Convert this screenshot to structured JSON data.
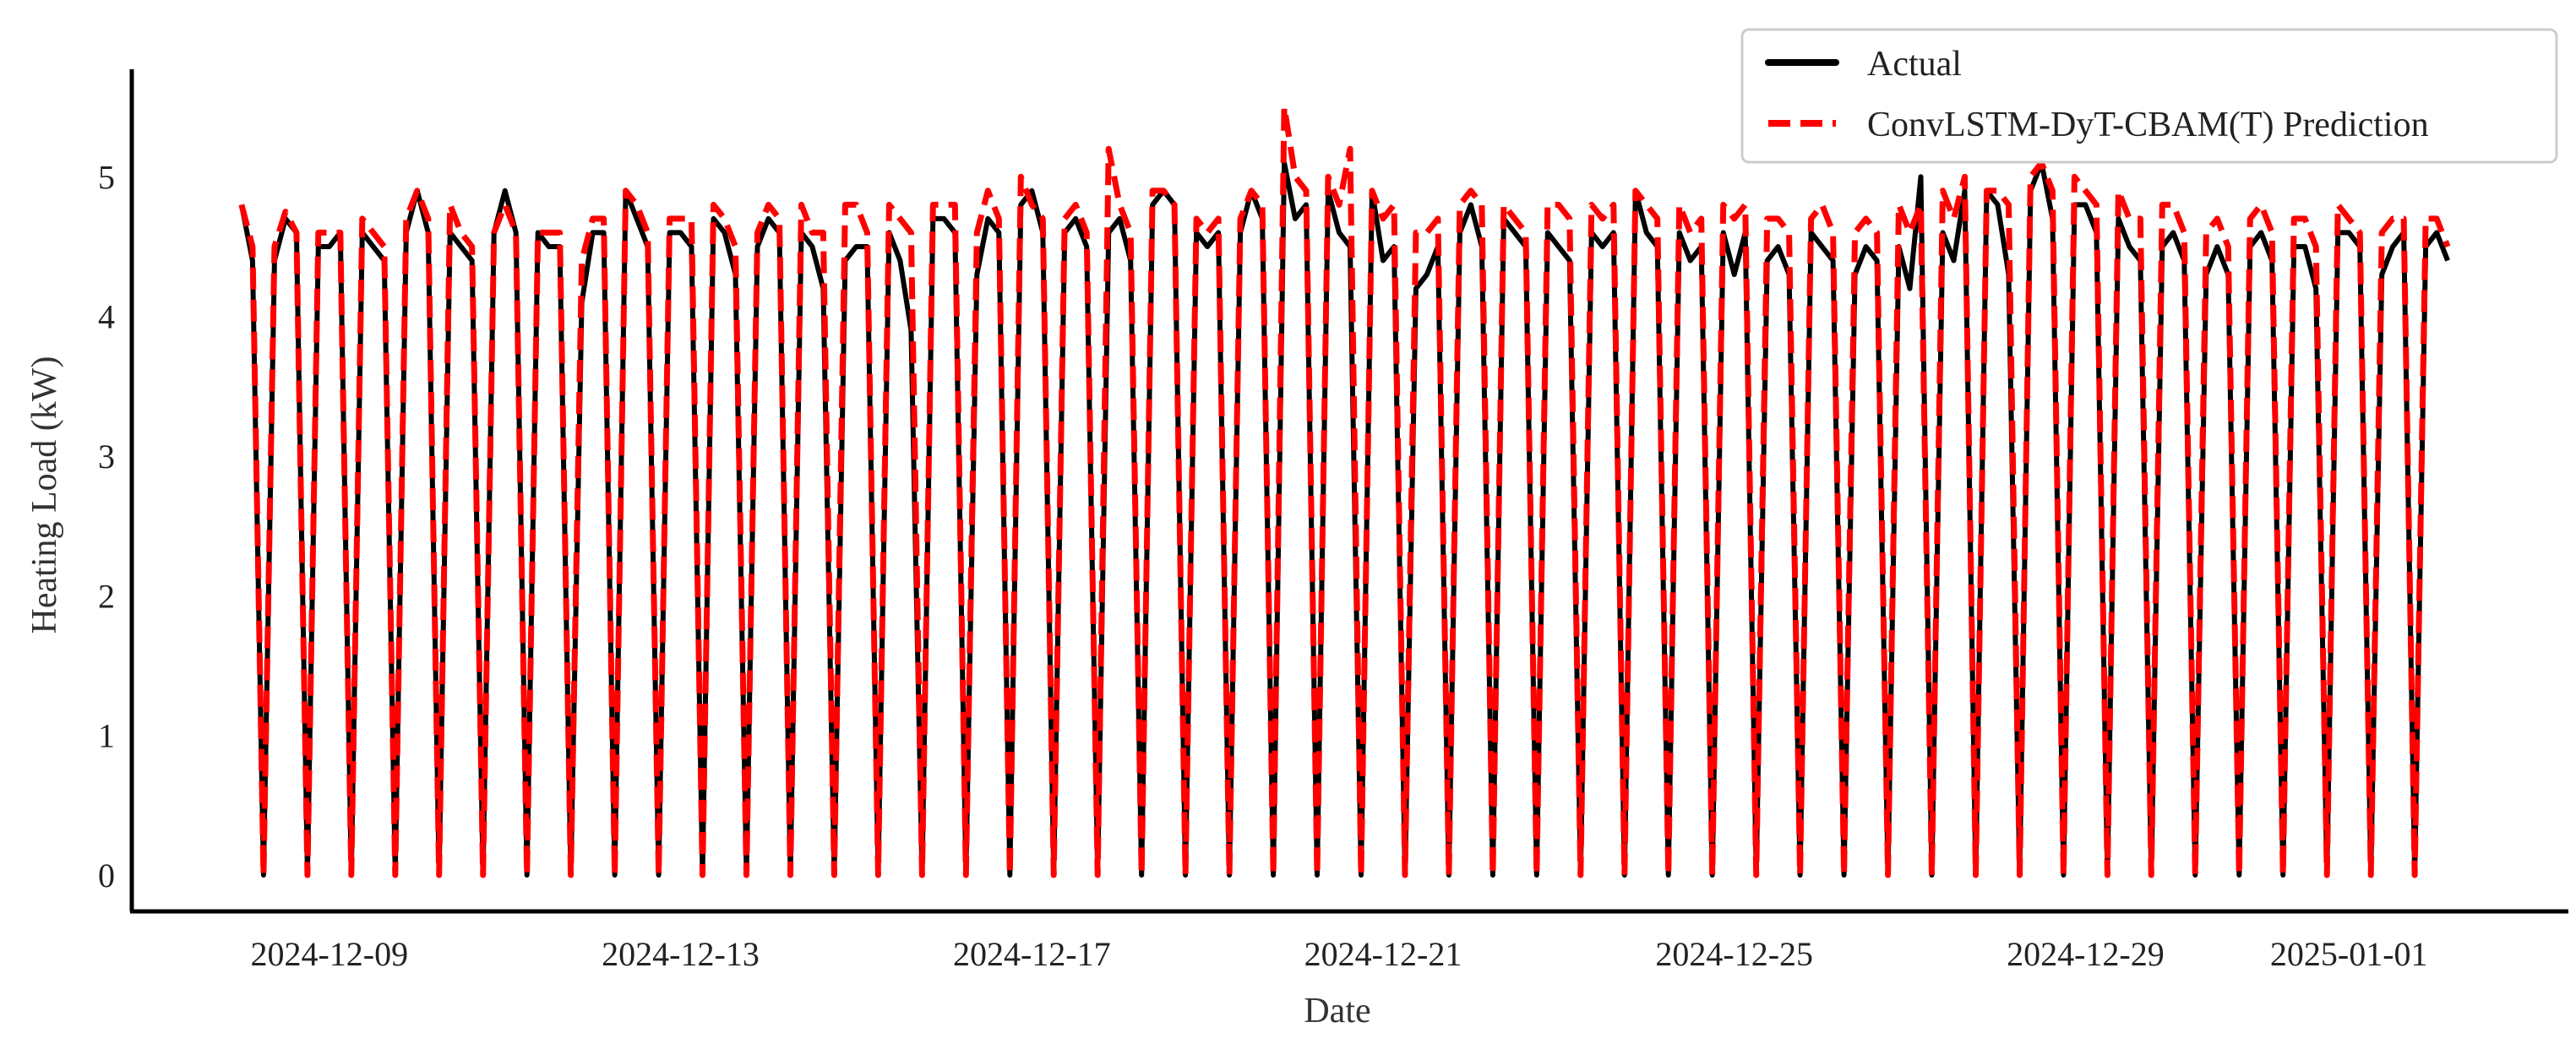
{
  "chart_data": {
    "type": "line",
    "title": "",
    "xlabel": "Date",
    "ylabel": "Heating Load (kW)",
    "xlim": [
      "2024-12-06 18:00",
      "2025-01-03 12:00"
    ],
    "ylim": [
      -0.26,
      5.77
    ],
    "grid": false,
    "legend_placement": "top-right",
    "x_tick_labels": [
      "2024-12-09",
      "2024-12-13",
      "2024-12-17",
      "2024-12-21",
      "2024-12-25",
      "2024-12-29",
      "2025-01-01"
    ],
    "y_ticks": [
      0,
      1,
      2,
      3,
      4,
      5
    ],
    "x": [
      "2024-12-08 00:00",
      "2024-12-08 03:00",
      "2024-12-08 06:00",
      "2024-12-08 09:00",
      "2024-12-08 12:00",
      "2024-12-08 15:00",
      "2024-12-08 18:00",
      "2024-12-08 21:00",
      "2024-12-09 00:00",
      "2024-12-09 03:00",
      "2024-12-09 06:00",
      "2024-12-09 09:00",
      "2024-12-09 12:00",
      "2024-12-09 15:00",
      "2024-12-09 18:00",
      "2024-12-09 21:00",
      "2024-12-10 00:00",
      "2024-12-10 03:00",
      "2024-12-10 06:00",
      "2024-12-10 09:00",
      "2024-12-10 12:00",
      "2024-12-10 15:00",
      "2024-12-10 18:00",
      "2024-12-10 21:00",
      "2024-12-11 00:00",
      "2024-12-11 03:00",
      "2024-12-11 06:00",
      "2024-12-11 09:00",
      "2024-12-11 12:00",
      "2024-12-11 15:00",
      "2024-12-11 18:00",
      "2024-12-11 21:00",
      "2024-12-12 00:00",
      "2024-12-12 03:00",
      "2024-12-12 06:00",
      "2024-12-12 09:00",
      "2024-12-12 12:00",
      "2024-12-12 15:00",
      "2024-12-12 18:00",
      "2024-12-12 21:00",
      "2024-12-13 00:00",
      "2024-12-13 03:00",
      "2024-12-13 06:00",
      "2024-12-13 09:00",
      "2024-12-13 12:00",
      "2024-12-13 15:00",
      "2024-12-13 18:00",
      "2024-12-13 21:00",
      "2024-12-14 00:00",
      "2024-12-14 03:00",
      "2024-12-14 06:00",
      "2024-12-14 09:00",
      "2024-12-14 12:00",
      "2024-12-14 15:00",
      "2024-12-14 18:00",
      "2024-12-14 21:00",
      "2024-12-15 00:00",
      "2024-12-15 03:00",
      "2024-12-15 06:00",
      "2024-12-15 09:00",
      "2024-12-15 12:00",
      "2024-12-15 15:00",
      "2024-12-15 18:00",
      "2024-12-15 21:00",
      "2024-12-16 00:00",
      "2024-12-16 03:00",
      "2024-12-16 06:00",
      "2024-12-16 09:00",
      "2024-12-16 12:00",
      "2024-12-16 15:00",
      "2024-12-16 18:00",
      "2024-12-16 21:00",
      "2024-12-17 00:00",
      "2024-12-17 03:00",
      "2024-12-17 06:00",
      "2024-12-17 09:00",
      "2024-12-17 12:00",
      "2024-12-17 15:00",
      "2024-12-17 18:00",
      "2024-12-17 21:00",
      "2024-12-18 00:00",
      "2024-12-18 03:00",
      "2024-12-18 06:00",
      "2024-12-18 09:00",
      "2024-12-18 12:00",
      "2024-12-18 15:00",
      "2024-12-18 18:00",
      "2024-12-18 21:00",
      "2024-12-19 00:00",
      "2024-12-19 03:00",
      "2024-12-19 06:00",
      "2024-12-19 09:00",
      "2024-12-19 12:00",
      "2024-12-19 15:00",
      "2024-12-19 18:00",
      "2024-12-19 21:00",
      "2024-12-20 00:00",
      "2024-12-20 03:00",
      "2024-12-20 06:00",
      "2024-12-20 09:00",
      "2024-12-20 12:00",
      "2024-12-20 15:00",
      "2024-12-20 18:00",
      "2024-12-20 21:00",
      "2024-12-21 00:00",
      "2024-12-21 03:00",
      "2024-12-21 06:00",
      "2024-12-21 09:00",
      "2024-12-21 12:00",
      "2024-12-21 15:00",
      "2024-12-21 18:00",
      "2024-12-21 21:00",
      "2024-12-22 00:00",
      "2024-12-22 03:00",
      "2024-12-22 06:00",
      "2024-12-22 09:00",
      "2024-12-22 12:00",
      "2024-12-22 15:00",
      "2024-12-22 18:00",
      "2024-12-22 21:00",
      "2024-12-23 00:00",
      "2024-12-23 03:00",
      "2024-12-23 06:00",
      "2024-12-23 09:00",
      "2024-12-23 12:00",
      "2024-12-23 15:00",
      "2024-12-23 18:00",
      "2024-12-23 21:00",
      "2024-12-24 00:00",
      "2024-12-24 03:00",
      "2024-12-24 06:00",
      "2024-12-24 09:00",
      "2024-12-24 12:00",
      "2024-12-24 15:00",
      "2024-12-24 18:00",
      "2024-12-24 21:00",
      "2024-12-25 00:00",
      "2024-12-25 03:00",
      "2024-12-25 06:00",
      "2024-12-25 09:00",
      "2024-12-25 12:00",
      "2024-12-25 15:00",
      "2024-12-25 18:00",
      "2024-12-25 21:00",
      "2024-12-26 00:00",
      "2024-12-26 03:00",
      "2024-12-26 06:00",
      "2024-12-26 09:00",
      "2024-12-26 12:00",
      "2024-12-26 15:00",
      "2024-12-26 18:00",
      "2024-12-26 21:00",
      "2024-12-27 00:00",
      "2024-12-27 03:00",
      "2024-12-27 06:00",
      "2024-12-27 09:00",
      "2024-12-27 12:00",
      "2024-12-27 15:00",
      "2024-12-27 18:00",
      "2024-12-27 21:00",
      "2024-12-28 00:00",
      "2024-12-28 03:00",
      "2024-12-28 06:00",
      "2024-12-28 09:00",
      "2024-12-28 12:00",
      "2024-12-28 15:00",
      "2024-12-28 18:00",
      "2024-12-28 21:00",
      "2024-12-29 00:00",
      "2024-12-29 03:00",
      "2024-12-29 06:00",
      "2024-12-29 09:00",
      "2024-12-29 12:00",
      "2024-12-29 15:00",
      "2024-12-29 18:00",
      "2024-12-29 21:00",
      "2024-12-30 00:00",
      "2024-12-30 03:00",
      "2024-12-30 06:00",
      "2024-12-30 09:00",
      "2024-12-30 12:00",
      "2024-12-30 15:00",
      "2024-12-30 18:00",
      "2024-12-30 21:00",
      "2024-12-31 00:00",
      "2024-12-31 03:00",
      "2024-12-31 06:00",
      "2024-12-31 09:00",
      "2024-12-31 12:00",
      "2024-12-31 15:00",
      "2024-12-31 18:00",
      "2024-12-31 21:00",
      "2025-01-01 00:00",
      "2025-01-01 03:00",
      "2025-01-01 06:00",
      "2025-01-01 09:00",
      "2025-01-01 12:00",
      "2025-01-01 15:00",
      "2025-01-01 18:00",
      "2025-01-01 21:00",
      "2025-01-02 00:00",
      "2025-01-02 03:00"
    ],
    "series": [
      {
        "name": "Actual",
        "color": "#000000",
        "style": "solid",
        "values": [
          4.8,
          4.4,
          0,
          4.4,
          4.7,
          4.6,
          0,
          4.5,
          4.5,
          4.6,
          0,
          4.6,
          4.5,
          4.4,
          0,
          4.6,
          4.9,
          4.6,
          0,
          4.6,
          4.5,
          4.4,
          0,
          4.6,
          4.9,
          4.6,
          0,
          4.6,
          4.5,
          4.5,
          0,
          4.1,
          4.6,
          4.6,
          0,
          4.9,
          4.7,
          4.5,
          0,
          4.6,
          4.6,
          4.5,
          0,
          4.7,
          4.6,
          4.3,
          0,
          4.5,
          4.7,
          4.6,
          0,
          4.6,
          4.5,
          4.2,
          0,
          4.4,
          4.5,
          4.5,
          0,
          4.6,
          4.4,
          3.9,
          0,
          4.7,
          4.7,
          4.6,
          0,
          4.3,
          4.7,
          4.6,
          0,
          4.8,
          4.9,
          4.6,
          0,
          4.6,
          4.7,
          4.5,
          0,
          4.6,
          4.7,
          4.4,
          0,
          4.8,
          4.9,
          4.8,
          0,
          4.6,
          4.5,
          4.6,
          0,
          4.6,
          4.9,
          4.7,
          0,
          5.1,
          4.7,
          4.8,
          0,
          4.9,
          4.6,
          4.5,
          0,
          4.9,
          4.4,
          4.5,
          0,
          4.2,
          4.3,
          4.5,
          0,
          4.6,
          4.8,
          4.5,
          0,
          4.7,
          4.6,
          4.5,
          0,
          4.6,
          4.5,
          4.4,
          0,
          4.6,
          4.5,
          4.6,
          0,
          4.9,
          4.6,
          4.5,
          0,
          4.6,
          4.4,
          4.5,
          0,
          4.6,
          4.3,
          4.6,
          0,
          4.4,
          4.5,
          4.3,
          0,
          4.6,
          4.5,
          4.4,
          0,
          4.3,
          4.5,
          4.4,
          0,
          4.5,
          4.2,
          5.0,
          0,
          4.6,
          4.4,
          4.9,
          0,
          4.9,
          4.8,
          4.3,
          0,
          4.9,
          5.1,
          4.7,
          0,
          4.8,
          4.8,
          4.6,
          0,
          4.7,
          4.5,
          4.4,
          0,
          4.5,
          4.6,
          4.4,
          0,
          4.3,
          4.5,
          4.3,
          0,
          4.5,
          4.6,
          4.4,
          0,
          4.5,
          4.5,
          4.2,
          0,
          4.6,
          4.6,
          4.5,
          0,
          4.3,
          4.5,
          4.6,
          0,
          4.5,
          4.6,
          4.4
        ]
      },
      {
        "name": "ConvLSTM-DyT-CBAM(T) Prediction",
        "color": "#ff0000",
        "style": "dashed",
        "values": [
          4.8,
          4.5,
          0,
          4.5,
          4.75,
          4.6,
          0,
          4.6,
          4.6,
          4.6,
          0,
          4.7,
          4.6,
          4.5,
          0,
          4.7,
          4.9,
          4.7,
          0,
          4.8,
          4.6,
          4.5,
          0,
          4.6,
          4.8,
          4.6,
          0,
          4.6,
          4.6,
          4.6,
          0,
          4.4,
          4.7,
          4.7,
          0,
          4.9,
          4.8,
          4.6,
          0,
          4.7,
          4.7,
          4.7,
          0,
          4.8,
          4.7,
          4.5,
          0,
          4.6,
          4.8,
          4.7,
          0,
          4.8,
          4.6,
          4.6,
          0,
          4.8,
          4.8,
          4.6,
          0,
          4.8,
          4.7,
          4.6,
          0,
          4.8,
          4.8,
          4.8,
          0,
          4.6,
          4.9,
          4.7,
          0,
          5.0,
          4.8,
          4.7,
          0,
          4.7,
          4.8,
          4.6,
          0,
          5.2,
          4.8,
          4.6,
          0,
          4.9,
          4.9,
          4.8,
          0,
          4.7,
          4.6,
          4.7,
          0,
          4.7,
          4.9,
          4.8,
          0,
          5.5,
          5.0,
          4.9,
          0,
          5.0,
          4.8,
          5.2,
          0,
          4.9,
          4.7,
          4.8,
          0,
          4.6,
          4.6,
          4.7,
          0,
          4.8,
          4.9,
          4.8,
          0,
          4.8,
          4.7,
          4.6,
          0,
          4.8,
          4.8,
          4.7,
          0,
          4.8,
          4.7,
          4.8,
          0,
          4.9,
          4.8,
          4.7,
          0,
          4.8,
          4.6,
          4.7,
          0,
          4.8,
          4.7,
          4.8,
          0,
          4.7,
          4.7,
          4.6,
          0,
          4.7,
          4.8,
          4.6,
          0,
          4.6,
          4.7,
          4.6,
          0,
          4.8,
          4.6,
          4.8,
          0,
          4.9,
          4.7,
          5.0,
          0,
          4.9,
          4.9,
          4.8,
          0,
          5.0,
          5.1,
          4.9,
          0,
          5.0,
          4.9,
          4.8,
          0,
          4.9,
          4.7,
          4.7,
          0,
          4.8,
          4.8,
          4.6,
          0,
          4.6,
          4.7,
          4.5,
          0,
          4.7,
          4.8,
          4.6,
          0,
          4.7,
          4.7,
          4.5,
          0,
          4.8,
          4.7,
          4.6,
          0,
          4.6,
          4.7,
          4.7,
          0,
          4.7,
          4.7,
          4.5
        ]
      }
    ]
  }
}
